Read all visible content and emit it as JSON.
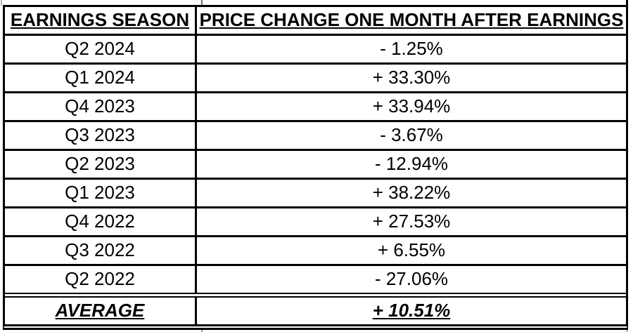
{
  "colors": {
    "background": "#ffffff",
    "border": "#000000",
    "text": "#000000"
  },
  "table": {
    "headers": [
      "EARNINGS SEASON",
      "PRICE CHANGE ONE MONTH AFTER EARNINGS"
    ],
    "rows": [
      {
        "season": "Q2 2024",
        "change": "- 1.25%"
      },
      {
        "season": "Q1 2024",
        "change": "+ 33.30%"
      },
      {
        "season": "Q4 2023",
        "change": "+ 33.94%"
      },
      {
        "season": "Q3 2023",
        "change": "- 3.67%"
      },
      {
        "season": "Q2 2023",
        "change": "- 12.94%"
      },
      {
        "season": "Q1 2023",
        "change": "+ 38.22%"
      },
      {
        "season": "Q4 2022",
        "change": "+ 27.53%"
      },
      {
        "season": "Q3 2022",
        "change": "+ 6.55%"
      },
      {
        "season": "Q2 2022",
        "change": "- 27.06%"
      }
    ],
    "footer": {
      "label": "AVERAGE",
      "value": "+ 10.51%"
    }
  },
  "chart_data": {
    "type": "table",
    "columns": [
      "EARNINGS SEASON",
      "PRICE CHANGE ONE MONTH AFTER EARNINGS"
    ],
    "categories": [
      "Q2 2024",
      "Q1 2024",
      "Q4 2023",
      "Q3 2023",
      "Q2 2023",
      "Q1 2023",
      "Q4 2022",
      "Q3 2022",
      "Q2 2022"
    ],
    "values_percent": [
      -1.25,
      33.3,
      33.94,
      -3.67,
      -12.94,
      38.22,
      27.53,
      6.55,
      -27.06
    ],
    "average_percent": 10.51,
    "value_labels": [
      "- 1.25%",
      "+ 33.30%",
      "+ 33.94%",
      "- 3.67%",
      "- 12.94%",
      "+ 38.22%",
      "+ 27.53%",
      "+ 6.55%",
      "- 27.06%"
    ],
    "average_label": "+ 10.51%"
  }
}
